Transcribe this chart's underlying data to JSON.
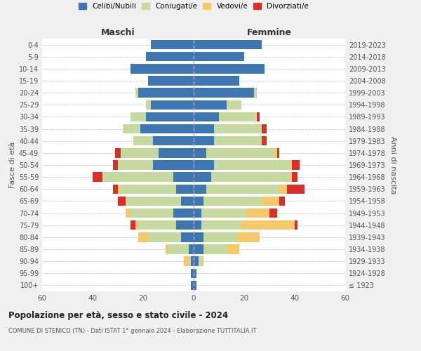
{
  "age_groups": [
    "100+",
    "95-99",
    "90-94",
    "85-89",
    "80-84",
    "75-79",
    "70-74",
    "65-69",
    "60-64",
    "55-59",
    "50-54",
    "45-49",
    "40-44",
    "35-39",
    "30-34",
    "25-29",
    "20-24",
    "15-19",
    "10-14",
    "5-9",
    "0-4"
  ],
  "birth_years": [
    "≤ 1923",
    "1924-1928",
    "1929-1933",
    "1934-1938",
    "1939-1943",
    "1944-1948",
    "1949-1953",
    "1954-1958",
    "1959-1963",
    "1964-1968",
    "1969-1973",
    "1974-1978",
    "1979-1983",
    "1984-1988",
    "1989-1993",
    "1994-1998",
    "1999-2003",
    "2004-2008",
    "2009-2013",
    "2014-2018",
    "2019-2023"
  ],
  "colors": {
    "celibe": "#3d76b0",
    "coniugato": "#c5d9a0",
    "vedovo": "#f5c96a",
    "divorziato": "#d63028"
  },
  "maschi": {
    "celibe": [
      1,
      1,
      1,
      2,
      5,
      7,
      8,
      5,
      7,
      8,
      16,
      14,
      16,
      21,
      19,
      17,
      22,
      18,
      25,
      19,
      17
    ],
    "coniugato": [
      0,
      0,
      1,
      8,
      13,
      15,
      17,
      22,
      22,
      28,
      14,
      15,
      8,
      7,
      6,
      2,
      1,
      0,
      0,
      0,
      0
    ],
    "vedovo": [
      0,
      0,
      2,
      1,
      4,
      1,
      2,
      0,
      1,
      0,
      0,
      0,
      0,
      0,
      0,
      0,
      0,
      0,
      0,
      0,
      0
    ],
    "divorziato": [
      0,
      0,
      0,
      0,
      0,
      2,
      0,
      3,
      2,
      4,
      2,
      2,
      0,
      0,
      0,
      0,
      0,
      0,
      0,
      0,
      0
    ]
  },
  "femmine": {
    "nubile": [
      1,
      1,
      2,
      4,
      4,
      3,
      3,
      4,
      5,
      7,
      8,
      5,
      8,
      8,
      10,
      13,
      24,
      18,
      28,
      20,
      27
    ],
    "coniugata": [
      0,
      0,
      1,
      9,
      13,
      16,
      18,
      23,
      29,
      31,
      30,
      27,
      19,
      19,
      15,
      6,
      1,
      0,
      0,
      0,
      0
    ],
    "vedova": [
      0,
      0,
      1,
      5,
      9,
      21,
      9,
      7,
      3,
      1,
      1,
      1,
      0,
      0,
      0,
      0,
      0,
      0,
      0,
      0,
      0
    ],
    "divorziata": [
      0,
      0,
      0,
      0,
      0,
      1,
      3,
      2,
      7,
      2,
      3,
      1,
      2,
      2,
      1,
      0,
      0,
      0,
      0,
      0,
      0
    ]
  },
  "xlim": 60,
  "title": "Popolazione per età, sesso e stato civile - 2024",
  "subtitle": "COMUNE DI STENICO (TN) - Dati ISTAT 1° gennaio 2024 - Elaborazione TUTTITALIA.IT",
  "ylabel_left": "Fasce di età",
  "ylabel_right": "Anni di nascita",
  "xlabel_left": "Maschi",
  "xlabel_right": "Femmine",
  "bg_color": "#f0f0f0",
  "plot_bg_color": "#ffffff"
}
